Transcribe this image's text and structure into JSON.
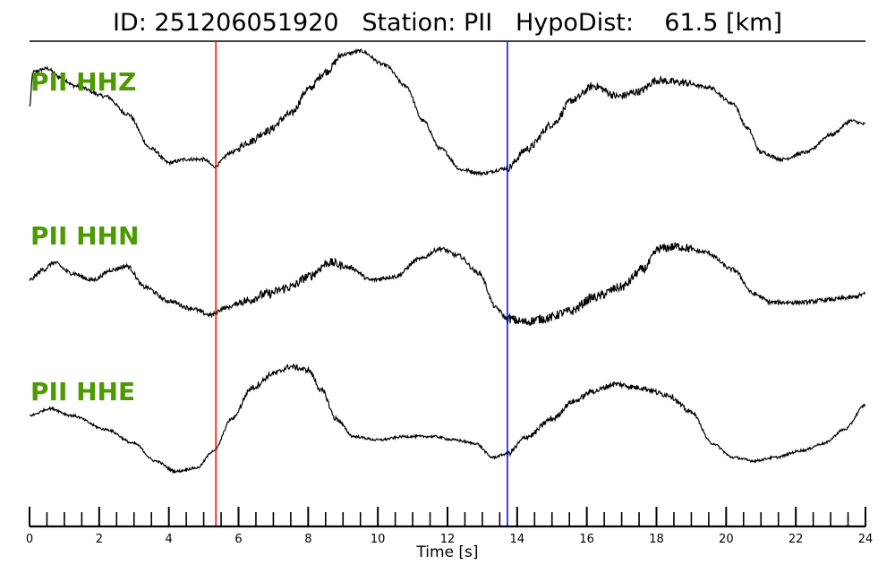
{
  "title": {
    "id_label": "ID:",
    "id_value": "251206051920",
    "station_label": "Station:",
    "station_value": "PII",
    "hypodist_label": "HypoDist:",
    "hypodist_value": "61.5",
    "hypodist_unit": "[km]"
  },
  "chart_data": {
    "type": "line",
    "xlabel": "Time [s]",
    "xlim": [
      0,
      24
    ],
    "x_ticks": [
      0,
      2,
      4,
      6,
      8,
      10,
      12,
      14,
      16,
      18,
      20,
      22,
      24
    ],
    "minor_tick_step": 0.5,
    "label_color": "#4c9a00",
    "trace_color": "#000000",
    "picks": [
      {
        "time": 5.35,
        "color": "#ff0000"
      },
      {
        "time": 13.72,
        "color": "#0000ff"
      }
    ],
    "series": [
      {
        "name": "PII HHZ",
        "noise": 0.05,
        "points": [
          [
            0,
            0.2
          ],
          [
            0.1,
            0.7
          ],
          [
            0.5,
            0.75
          ],
          [
            0.9,
            0.62
          ],
          [
            1.3,
            0.5
          ],
          [
            2.2,
            0.35
          ],
          [
            2.8,
            0.1
          ],
          [
            3.5,
            -0.4
          ],
          [
            4.0,
            -0.6
          ],
          [
            4.5,
            -0.55
          ],
          [
            5.0,
            -0.55
          ],
          [
            5.3,
            -0.65
          ],
          [
            5.8,
            -0.45
          ],
          [
            6.3,
            -0.3
          ],
          [
            6.8,
            -0.15
          ],
          [
            7.5,
            0.1
          ],
          [
            8.0,
            0.45
          ],
          [
            8.5,
            0.7
          ],
          [
            9.0,
            0.95
          ],
          [
            9.5,
            1.0
          ],
          [
            10.2,
            0.8
          ],
          [
            10.8,
            0.5
          ],
          [
            11.3,
            0.0
          ],
          [
            11.8,
            -0.4
          ],
          [
            12.4,
            -0.7
          ],
          [
            13.0,
            -0.75
          ],
          [
            13.7,
            -0.68
          ],
          [
            14.3,
            -0.4
          ],
          [
            15.0,
            -0.05
          ],
          [
            15.6,
            0.3
          ],
          [
            16.2,
            0.5
          ],
          [
            16.9,
            0.35
          ],
          [
            17.5,
            0.42
          ],
          [
            18.0,
            0.58
          ],
          [
            18.7,
            0.55
          ],
          [
            19.5,
            0.48
          ],
          [
            20.2,
            0.25
          ],
          [
            20.6,
            -0.1
          ],
          [
            21.0,
            -0.45
          ],
          [
            21.6,
            -0.55
          ],
          [
            22.3,
            -0.45
          ],
          [
            23.0,
            -0.2
          ],
          [
            23.6,
            0.0
          ],
          [
            24.0,
            -0.05
          ]
        ]
      },
      {
        "name": "PII HHN",
        "noise": 0.06,
        "points": [
          [
            0,
            -0.1
          ],
          [
            0.4,
            0.05
          ],
          [
            0.7,
            0.15
          ],
          [
            1.2,
            0.0
          ],
          [
            1.8,
            -0.1
          ],
          [
            2.4,
            0.05
          ],
          [
            2.8,
            0.1
          ],
          [
            3.3,
            -0.2
          ],
          [
            4.0,
            -0.4
          ],
          [
            4.6,
            -0.5
          ],
          [
            5.2,
            -0.6
          ],
          [
            5.6,
            -0.5
          ],
          [
            6.2,
            -0.4
          ],
          [
            6.8,
            -0.3
          ],
          [
            7.5,
            -0.2
          ],
          [
            8.0,
            -0.05
          ],
          [
            8.6,
            0.15
          ],
          [
            9.2,
            0.08
          ],
          [
            9.8,
            -0.1
          ],
          [
            10.5,
            -0.05
          ],
          [
            11.2,
            0.2
          ],
          [
            11.8,
            0.35
          ],
          [
            12.3,
            0.25
          ],
          [
            12.9,
            0.0
          ],
          [
            13.4,
            -0.5
          ],
          [
            13.7,
            -0.65
          ],
          [
            14.2,
            -0.7
          ],
          [
            14.8,
            -0.65
          ],
          [
            15.5,
            -0.55
          ],
          [
            16.2,
            -0.35
          ],
          [
            17.0,
            -0.2
          ],
          [
            17.6,
            0.05
          ],
          [
            18.1,
            0.35
          ],
          [
            18.6,
            0.38
          ],
          [
            19.4,
            0.3
          ],
          [
            20.2,
            0.05
          ],
          [
            20.8,
            -0.3
          ],
          [
            21.3,
            -0.42
          ],
          [
            22.2,
            -0.42
          ],
          [
            23.0,
            -0.38
          ],
          [
            23.6,
            -0.35
          ],
          [
            24.0,
            -0.3
          ]
        ]
      },
      {
        "name": "PII HHE",
        "noise": 0.035,
        "points": [
          [
            0,
            0.05
          ],
          [
            0.6,
            0.15
          ],
          [
            1.2,
            0.05
          ],
          [
            2.2,
            -0.15
          ],
          [
            3.0,
            -0.35
          ],
          [
            3.6,
            -0.6
          ],
          [
            4.2,
            -0.75
          ],
          [
            4.8,
            -0.7
          ],
          [
            5.3,
            -0.45
          ],
          [
            5.8,
            0.0
          ],
          [
            6.4,
            0.45
          ],
          [
            7.0,
            0.65
          ],
          [
            7.5,
            0.75
          ],
          [
            8.0,
            0.7
          ],
          [
            8.4,
            0.4
          ],
          [
            8.8,
            0.0
          ],
          [
            9.3,
            -0.25
          ],
          [
            10.0,
            -0.3
          ],
          [
            10.8,
            -0.25
          ],
          [
            11.6,
            -0.25
          ],
          [
            12.2,
            -0.3
          ],
          [
            12.8,
            -0.35
          ],
          [
            13.3,
            -0.55
          ],
          [
            13.7,
            -0.5
          ],
          [
            14.3,
            -0.25
          ],
          [
            15.0,
            0.0
          ],
          [
            15.6,
            0.25
          ],
          [
            16.2,
            0.4
          ],
          [
            16.8,
            0.5
          ],
          [
            17.5,
            0.45
          ],
          [
            18.3,
            0.35
          ],
          [
            19.0,
            0.1
          ],
          [
            19.6,
            -0.35
          ],
          [
            20.2,
            -0.55
          ],
          [
            20.8,
            -0.6
          ],
          [
            21.4,
            -0.55
          ],
          [
            22.2,
            -0.45
          ],
          [
            22.8,
            -0.35
          ],
          [
            23.4,
            -0.15
          ],
          [
            24.0,
            0.2
          ]
        ]
      }
    ]
  }
}
